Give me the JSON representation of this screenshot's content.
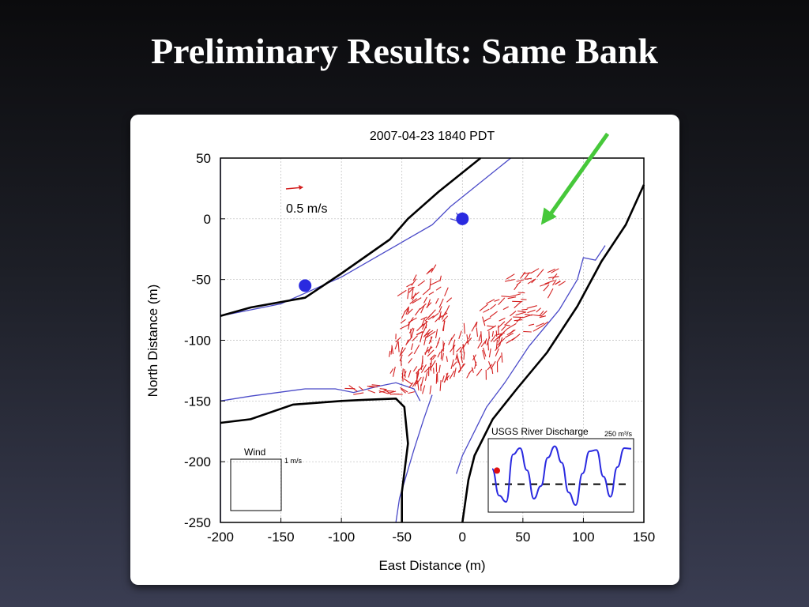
{
  "slide": {
    "title": "Preliminary Results: Same Bank"
  },
  "colors": {
    "vector": "#d42020",
    "channel": "#4a4ac8",
    "bank": "#000000",
    "marker": "#2a2ae0",
    "arrow": "#46c83a",
    "discharge": "#2a2ae0",
    "discharge_dot": "#e01010"
  },
  "chart_data": {
    "type": "map-vector",
    "title": "2007-04-23 1840 PDT",
    "xlabel": "East Distance (m)",
    "ylabel": "North Distance (m)",
    "xlim": [
      -200,
      150
    ],
    "ylim": [
      -250,
      50
    ],
    "xticks": [
      "-200",
      "-150",
      "-100",
      "-50",
      "0",
      "50",
      "100",
      "150"
    ],
    "yticks": [
      "50",
      "0",
      "-50",
      "-100",
      "-150",
      "-200",
      "-250"
    ],
    "grid": true,
    "scale_label": "0.5 m/s",
    "wind": {
      "label": "Wind",
      "scale_label": "1 m/s"
    },
    "markers": [
      {
        "x": -130,
        "y": -55
      },
      {
        "x": 0,
        "y": 0
      }
    ],
    "banks": [
      [
        [
          -200,
          -80
        ],
        [
          -175,
          -73
        ],
        [
          -130,
          -65
        ],
        [
          -100,
          -45
        ],
        [
          -60,
          -17
        ],
        [
          -45,
          0
        ],
        [
          -20,
          22
        ],
        [
          15,
          50
        ]
      ],
      [
        [
          -200,
          -168
        ],
        [
          -175,
          -165
        ],
        [
          -140,
          -153
        ],
        [
          -100,
          -150
        ],
        [
          -80,
          -149
        ],
        [
          -55,
          -148
        ],
        [
          -48,
          -155
        ],
        [
          -45,
          -185
        ],
        [
          -50,
          -225
        ],
        [
          -50,
          -250
        ]
      ],
      [
        [
          0,
          -250
        ],
        [
          5,
          -215
        ],
        [
          10,
          -195
        ],
        [
          25,
          -165
        ],
        [
          45,
          -140
        ],
        [
          70,
          -110
        ],
        [
          95,
          -72
        ],
        [
          115,
          -35
        ],
        [
          135,
          -5
        ],
        [
          150,
          28
        ]
      ]
    ],
    "channel_edges": [
      [
        [
          -200,
          -80
        ],
        [
          -150,
          -70
        ],
        [
          -100,
          -48
        ],
        [
          -60,
          -25
        ],
        [
          -25,
          -5
        ],
        [
          -10,
          10
        ],
        [
          40,
          50
        ]
      ],
      [
        [
          -10,
          0
        ],
        [
          0,
          -3
        ],
        [
          -5,
          5
        ]
      ],
      [
        [
          -200,
          -150
        ],
        [
          -175,
          -146
        ],
        [
          -130,
          -140
        ],
        [
          -105,
          -140
        ],
        [
          -90,
          -143
        ],
        [
          -70,
          -138
        ],
        [
          -55,
          -135
        ],
        [
          -40,
          -140
        ],
        [
          -35,
          -150
        ]
      ],
      [
        [
          -55,
          -250
        ],
        [
          -52,
          -230
        ],
        [
          -40,
          -190
        ],
        [
          -32,
          -165
        ],
        [
          -25,
          -145
        ]
      ],
      [
        [
          -5,
          -210
        ],
        [
          0,
          -195
        ],
        [
          10,
          -175
        ],
        [
          20,
          -155
        ],
        [
          35,
          -135
        ],
        [
          55,
          -105
        ],
        [
          80,
          -75
        ],
        [
          95,
          -50
        ],
        [
          100,
          -32
        ],
        [
          110,
          -34
        ],
        [
          118,
          -22
        ]
      ],
      [
        [
          -200,
          -250
        ],
        [
          -200,
          50
        ]
      ]
    ],
    "green_arrow": {
      "from": [
        120,
        70
      ],
      "to": [
        65,
        -5
      ]
    },
    "inset": {
      "title": "USGS River Discharge",
      "scale_label": "250 m³/s",
      "cycle_values": [
        0.62,
        0.2,
        0.1,
        0.85,
        0.95,
        0.6,
        0.15,
        0.35,
        0.8,
        0.98,
        0.72,
        0.25,
        0.05,
        0.55,
        0.9,
        0.92,
        0.5,
        0.18,
        0.65,
        0.95,
        0.94
      ],
      "marker_index": 0,
      "reference_level": 0.38
    }
  }
}
